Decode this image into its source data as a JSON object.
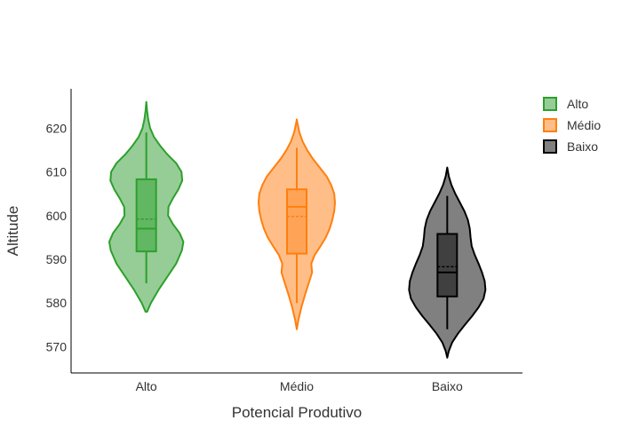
{
  "chart_data": {
    "type": "violin",
    "title": "",
    "xlabel": "Potencial Produtivo",
    "ylabel": "Altitude",
    "ylim": [
      564,
      629
    ],
    "yticks": [
      570,
      580,
      590,
      600,
      610,
      620
    ],
    "categories": [
      "Alto",
      "Médio",
      "Baixo"
    ],
    "legend_placement": "top-right",
    "grid": false,
    "series": [
      {
        "name": "Alto",
        "color": "#2ca02c",
        "fill": "#96cd96",
        "box_fill": "#62b762",
        "min": 584.5,
        "q1": 591.8,
        "median": 597.0,
        "mean": 599.2,
        "q3": 608.3,
        "max": 619.0,
        "kde_range": [
          578.0,
          626.0
        ],
        "density": [
          [
            578,
            0.02
          ],
          [
            580,
            0.12
          ],
          [
            583,
            0.32
          ],
          [
            586,
            0.55
          ],
          [
            589,
            0.78
          ],
          [
            592,
            0.93
          ],
          [
            594,
            0.97
          ],
          [
            596,
            0.87
          ],
          [
            598,
            0.7
          ],
          [
            600,
            0.57
          ],
          [
            602,
            0.58
          ],
          [
            604,
            0.7
          ],
          [
            606,
            0.84
          ],
          [
            608,
            0.94
          ],
          [
            610,
            0.92
          ],
          [
            612,
            0.78
          ],
          [
            614,
            0.55
          ],
          [
            616,
            0.36
          ],
          [
            618,
            0.2
          ],
          [
            620,
            0.1
          ],
          [
            622,
            0.05
          ],
          [
            624,
            0.02
          ],
          [
            626,
            0.0
          ]
        ]
      },
      {
        "name": "Médio",
        "color": "#ff7f0e",
        "fill": "#ffbe87",
        "box_fill": "#ffa456",
        "min": 580.0,
        "q1": 591.3,
        "median": 602.0,
        "mean": 599.8,
        "q3": 606.0,
        "max": 615.5,
        "kde_range": [
          574.0,
          622.0
        ],
        "density": [
          [
            574,
            0.0
          ],
          [
            576,
            0.04
          ],
          [
            579,
            0.12
          ],
          [
            582,
            0.22
          ],
          [
            585,
            0.33
          ],
          [
            587,
            0.4
          ],
          [
            589,
            0.38
          ],
          [
            591,
            0.47
          ],
          [
            593,
            0.62
          ],
          [
            595,
            0.76
          ],
          [
            597,
            0.86
          ],
          [
            599,
            0.93
          ],
          [
            601,
            0.98
          ],
          [
            603,
            1.0
          ],
          [
            605,
            0.98
          ],
          [
            607,
            0.9
          ],
          [
            609,
            0.78
          ],
          [
            611,
            0.6
          ],
          [
            613,
            0.42
          ],
          [
            615,
            0.27
          ],
          [
            617,
            0.15
          ],
          [
            619,
            0.07
          ],
          [
            621,
            0.02
          ],
          [
            622,
            0.0
          ]
        ]
      },
      {
        "name": "Baixo",
        "color": "#000000",
        "fill": "#808080",
        "box_fill": "#404040",
        "min": 574.0,
        "q1": 581.5,
        "median": 587.0,
        "mean": 588.3,
        "q3": 595.8,
        "max": 604.5,
        "kde_range": [
          567.5,
          611.0
        ],
        "density": [
          [
            567.5,
            0.0
          ],
          [
            569,
            0.04
          ],
          [
            571,
            0.13
          ],
          [
            573,
            0.28
          ],
          [
            575,
            0.46
          ],
          [
            577,
            0.65
          ],
          [
            579,
            0.82
          ],
          [
            581,
            0.95
          ],
          [
            583,
            1.0
          ],
          [
            585,
            0.98
          ],
          [
            587,
            0.91
          ],
          [
            589,
            0.82
          ],
          [
            591,
            0.72
          ],
          [
            593,
            0.64
          ],
          [
            595,
            0.61
          ],
          [
            597,
            0.59
          ],
          [
            599,
            0.54
          ],
          [
            601,
            0.45
          ],
          [
            603,
            0.33
          ],
          [
            605,
            0.21
          ],
          [
            607,
            0.11
          ],
          [
            609,
            0.04
          ],
          [
            611,
            0.0
          ]
        ]
      }
    ]
  }
}
